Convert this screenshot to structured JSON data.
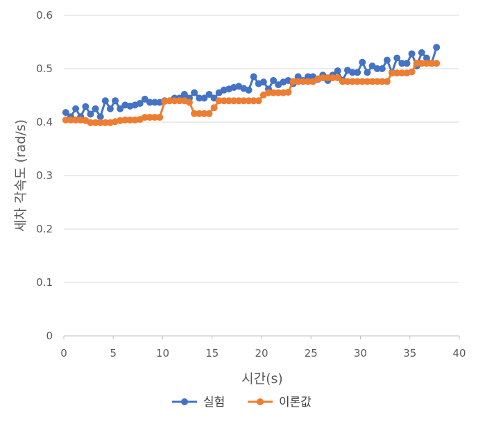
{
  "chart_data": {
    "type": "line",
    "title": "",
    "xlabel": "시간(s)",
    "ylabel": "세차 각속도 (rad/s)",
    "xlim": [
      0,
      40
    ],
    "ylim": [
      0,
      0.6
    ],
    "x_ticks": [
      "0",
      "5",
      "10",
      "15",
      "20",
      "25",
      "30",
      "35",
      "40"
    ],
    "y_ticks": [
      "0",
      "0.1",
      "0.2",
      "0.3",
      "0.4",
      "0.5",
      "0.6"
    ],
    "grid": "horizontal",
    "legend": "bottom",
    "series": [
      {
        "name": "실험",
        "color": "#4472C4",
        "x": [
          0.2,
          0.7,
          1.2,
          1.7,
          2.2,
          2.7,
          3.2,
          3.7,
          4.2,
          4.7,
          5.2,
          5.7,
          6.2,
          6.7,
          7.2,
          7.7,
          8.2,
          8.7,
          9.2,
          9.7,
          10.2,
          10.7,
          11.2,
          11.7,
          12.2,
          12.7,
          13.2,
          13.7,
          14.2,
          14.7,
          15.2,
          15.7,
          16.2,
          16.7,
          17.2,
          17.7,
          18.2,
          18.7,
          19.2,
          19.7,
          20.2,
          20.7,
          21.2,
          21.7,
          22.2,
          22.7,
          23.2,
          23.7,
          24.2,
          24.7,
          25.2,
          25.7,
          26.2,
          26.7,
          27.2,
          27.7,
          28.2,
          28.7,
          29.2,
          29.7,
          30.2,
          30.7,
          31.2,
          31.7,
          32.2,
          32.7,
          33.2,
          33.7,
          34.2,
          34.7,
          35.2,
          35.7,
          36.2,
          36.7,
          37.2,
          37.7
        ],
        "values": [
          0.418,
          0.41,
          0.425,
          0.41,
          0.429,
          0.415,
          0.425,
          0.41,
          0.44,
          0.425,
          0.44,
          0.425,
          0.432,
          0.43,
          0.432,
          0.435,
          0.443,
          0.437,
          0.437,
          0.437,
          0.44,
          0.44,
          0.445,
          0.445,
          0.452,
          0.445,
          0.455,
          0.445,
          0.445,
          0.452,
          0.445,
          0.455,
          0.46,
          0.462,
          0.465,
          0.467,
          0.463,
          0.46,
          0.485,
          0.472,
          0.475,
          0.462,
          0.478,
          0.47,
          0.475,
          0.478,
          0.472,
          0.485,
          0.478,
          0.485,
          0.485,
          0.48,
          0.488,
          0.478,
          0.488,
          0.496,
          0.478,
          0.497,
          0.493,
          0.493,
          0.512,
          0.493,
          0.505,
          0.5,
          0.5,
          0.516,
          0.493,
          0.52,
          0.51,
          0.51,
          0.528,
          0.505,
          0.53,
          0.52,
          0.51,
          0.54
        ]
      },
      {
        "name": "이론값",
        "color": "#ED7D31",
        "x": [
          0.2,
          0.7,
          1.2,
          1.7,
          2.2,
          2.7,
          3.2,
          3.7,
          4.2,
          4.7,
          5.2,
          5.7,
          6.2,
          6.7,
          7.2,
          7.7,
          8.2,
          8.7,
          9.2,
          9.7,
          10.2,
          10.7,
          11.2,
          11.7,
          12.2,
          12.7,
          13.2,
          13.7,
          14.2,
          14.7,
          15.2,
          15.7,
          16.2,
          16.7,
          17.2,
          17.7,
          18.2,
          18.7,
          19.2,
          19.7,
          20.2,
          20.7,
          21.2,
          21.7,
          22.2,
          22.7,
          23.2,
          23.7,
          24.2,
          24.7,
          25.2,
          25.7,
          26.2,
          26.7,
          27.2,
          27.7,
          28.2,
          28.7,
          29.2,
          29.7,
          30.2,
          30.7,
          31.2,
          31.7,
          32.2,
          32.7,
          33.2,
          33.7,
          34.2,
          34.7,
          35.2,
          35.7,
          36.2,
          36.7,
          37.2,
          37.7
        ],
        "values": [
          0.404,
          0.404,
          0.404,
          0.404,
          0.403,
          0.399,
          0.399,
          0.399,
          0.399,
          0.399,
          0.401,
          0.403,
          0.404,
          0.404,
          0.404,
          0.405,
          0.409,
          0.409,
          0.409,
          0.409,
          0.439,
          0.44,
          0.44,
          0.44,
          0.44,
          0.437,
          0.416,
          0.416,
          0.416,
          0.416,
          0.427,
          0.44,
          0.44,
          0.44,
          0.44,
          0.44,
          0.44,
          0.44,
          0.44,
          0.44,
          0.451,
          0.455,
          0.455,
          0.455,
          0.455,
          0.456,
          0.476,
          0.476,
          0.476,
          0.476,
          0.476,
          0.481,
          0.483,
          0.483,
          0.483,
          0.483,
          0.476,
          0.476,
          0.476,
          0.476,
          0.476,
          0.476,
          0.476,
          0.476,
          0.476,
          0.476,
          0.492,
          0.492,
          0.492,
          0.492,
          0.494,
          0.51,
          0.51,
          0.51,
          0.51,
          0.51
        ]
      }
    ]
  }
}
